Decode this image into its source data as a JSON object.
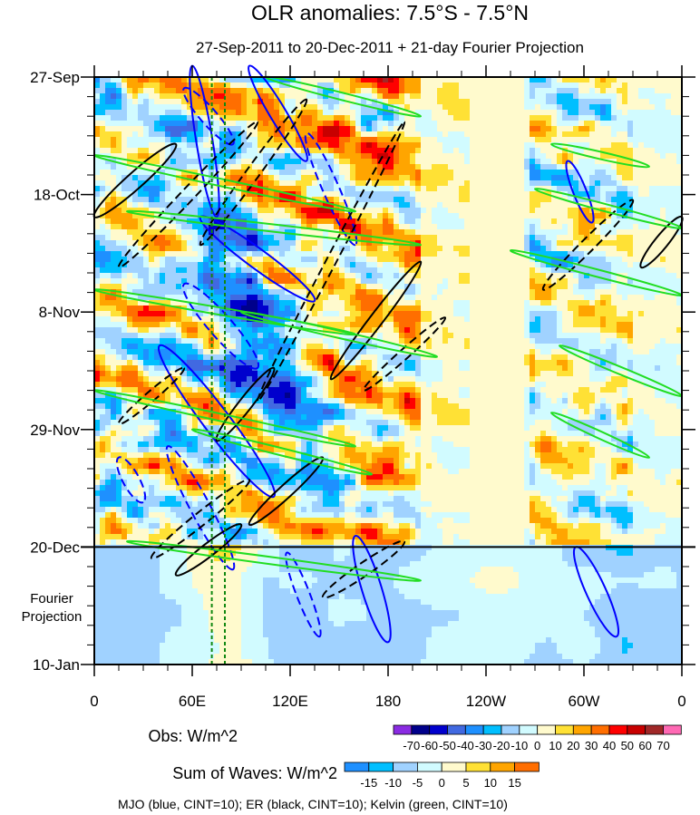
{
  "chart_data": {
    "type": "heatmap",
    "title": "OLR anomalies: 7.5°S - 7.5°N",
    "subtitle": "27-Sep-2011 to 20-Dec-2011 + 21-day Fourier Projection",
    "y_ticks": [
      {
        "label": "27-Sep",
        "day": 0
      },
      {
        "label": "18-Oct",
        "day": 21
      },
      {
        "label": "8-Nov",
        "day": 42
      },
      {
        "label": "29-Nov",
        "day": 63
      },
      {
        "label": "20-Dec",
        "day": 84
      },
      {
        "label": "10-Jan",
        "day": 105
      }
    ],
    "y_range_days": [
      0,
      105
    ],
    "projection_start_day": 84,
    "projection_label": [
      "Fourier",
      "Projection"
    ],
    "x_ticks": [
      {
        "label": "0",
        "lon": 0
      },
      {
        "label": "60E",
        "lon": 60
      },
      {
        "label": "120E",
        "lon": 120
      },
      {
        "label": "180",
        "lon": 180
      },
      {
        "label": "120W",
        "lon": 240
      },
      {
        "label": "60W",
        "lon": 300
      },
      {
        "label": "0",
        "lon": 360
      }
    ],
    "x_range_lon": [
      0,
      360
    ],
    "reference_lines_lon": [
      72,
      80
    ],
    "obs_colorbar": {
      "label": "Obs: W/m^2",
      "levels": [
        -70,
        -60,
        -50,
        -40,
        -30,
        -20,
        -10,
        0,
        10,
        20,
        30,
        40,
        50,
        60,
        70
      ],
      "colors": [
        "#8a2be2",
        "#00008b",
        "#0000cd",
        "#4169e1",
        "#1e90ff",
        "#00bfff",
        "#a0d2ff",
        "#d1fbff",
        "#fffacd",
        "#ffe135",
        "#ffa500",
        "#ff6e00",
        "#ff0000",
        "#c80000",
        "#a02828",
        "#ff69b4"
      ]
    },
    "waves_colorbar": {
      "label": "Sum of Waves: W/m^2",
      "levels": [
        -15,
        -10,
        -5,
        0,
        5,
        10,
        15
      ],
      "colors": [
        "#1e90ff",
        "#00bfff",
        "#a0d2ff",
        "#d1fbff",
        "#fffacd",
        "#ffe135",
        "#ffa500",
        "#ff6e00"
      ]
    },
    "legend_note": "MJO (blue, CINT=10); ER (black, CINT=10); Kelvin (green, CINT=10)",
    "contours": [
      {
        "wave": "MJO",
        "color": "#0000ff",
        "dashed": false,
        "p1": [
          60,
          -2
        ],
        "p2": [
          75,
          25
        ],
        "w": 10
      },
      {
        "wave": "MJO",
        "color": "#0000ff",
        "dashed": true,
        "p1": [
          55,
          2
        ],
        "p2": [
          85,
          12
        ],
        "w": 10
      },
      {
        "wave": "MJO",
        "color": "#0000ff",
        "dashed": false,
        "p1": [
          95,
          -2
        ],
        "p2": [
          130,
          15
        ],
        "w": 10
      },
      {
        "wave": "MJO",
        "color": "#0000ff",
        "dashed": true,
        "p1": [
          130,
          10
        ],
        "p2": [
          160,
          30
        ],
        "w": 10
      },
      {
        "wave": "MJO",
        "color": "#0000ff",
        "dashed": false,
        "p1": [
          65,
          25
        ],
        "p2": [
          135,
          40
        ],
        "w": 12
      },
      {
        "wave": "MJO",
        "color": "#0000ff",
        "dashed": true,
        "p1": [
          55,
          37
        ],
        "p2": [
          100,
          52
        ],
        "w": 14
      },
      {
        "wave": "MJO",
        "color": "#0000ff",
        "dashed": false,
        "p1": [
          40,
          48
        ],
        "p2": [
          110,
          75
        ],
        "w": 16
      },
      {
        "wave": "MJO",
        "color": "#0000ff",
        "dashed": true,
        "p1": [
          15,
          68
        ],
        "p2": [
          30,
          76
        ],
        "w": 10
      },
      {
        "wave": "MJO",
        "color": "#0000ff",
        "dashed": true,
        "p1": [
          45,
          66
        ],
        "p2": [
          85,
          88
        ],
        "w": 12
      },
      {
        "wave": "MJO",
        "color": "#0000ff",
        "dashed": true,
        "p1": [
          118,
          85
        ],
        "p2": [
          138,
          100
        ],
        "w": 8
      },
      {
        "wave": "MJO",
        "color": "#0000ff",
        "dashed": false,
        "p1": [
          160,
          82
        ],
        "p2": [
          180,
          101
        ],
        "w": 12
      },
      {
        "wave": "MJO",
        "color": "#0000ff",
        "dashed": false,
        "p1": [
          295,
          84
        ],
        "p2": [
          320,
          100
        ],
        "w": 12
      },
      {
        "wave": "MJO",
        "color": "#0000ff",
        "dashed": false,
        "p1": [
          290,
          15
        ],
        "p2": [
          305,
          26
        ],
        "w": 8
      },
      {
        "wave": "ER",
        "color": "#000000",
        "dashed": false,
        "p1": [
          0,
          25
        ],
        "p2": [
          50,
          12
        ],
        "w": 10
      },
      {
        "wave": "ER",
        "color": "#000000",
        "dashed": true,
        "p1": [
          15,
          34
        ],
        "p2": [
          100,
          8
        ],
        "w": 8
      },
      {
        "wave": "ER",
        "color": "#000000",
        "dashed": true,
        "p1": [
          65,
          30
        ],
        "p2": [
          130,
          4
        ],
        "w": 8
      },
      {
        "wave": "ER",
        "color": "#000000",
        "dashed": true,
        "p1": [
          100,
          58
        ],
        "p2": [
          190,
          8
        ],
        "w": 6
      },
      {
        "wave": "ER",
        "color": "#000000",
        "dashed": false,
        "p1": [
          75,
          65
        ],
        "p2": [
          110,
          52
        ],
        "w": 8
      },
      {
        "wave": "ER",
        "color": "#000000",
        "dashed": false,
        "p1": [
          145,
          54
        ],
        "p2": [
          200,
          33
        ],
        "w": 8
      },
      {
        "wave": "ER",
        "color": "#000000",
        "dashed": true,
        "p1": [
          165,
          56
        ],
        "p2": [
          215,
          43
        ],
        "w": 6
      },
      {
        "wave": "ER",
        "color": "#000000",
        "dashed": false,
        "p1": [
          95,
          80
        ],
        "p2": [
          140,
          68
        ],
        "w": 8
      },
      {
        "wave": "ER",
        "color": "#000000",
        "dashed": true,
        "p1": [
          35,
          86
        ],
        "p2": [
          95,
          72
        ],
        "w": 8
      },
      {
        "wave": "ER",
        "color": "#000000",
        "dashed": true,
        "p1": [
          140,
          93
        ],
        "p2": [
          190,
          83
        ],
        "w": 8
      },
      {
        "wave": "ER",
        "color": "#000000",
        "dashed": false,
        "p1": [
          50,
          89
        ],
        "p2": [
          90,
          80
        ],
        "w": 8
      },
      {
        "wave": "ER",
        "color": "#000000",
        "dashed": true,
        "p1": [
          275,
          38
        ],
        "p2": [
          330,
          22
        ],
        "w": 8
      },
      {
        "wave": "ER",
        "color": "#000000",
        "dashed": false,
        "p1": [
          335,
          34
        ],
        "p2": [
          360,
          25
        ],
        "w": 8
      },
      {
        "wave": "ER",
        "color": "#000000",
        "dashed": true,
        "p1": [
          15,
          62
        ],
        "p2": [
          55,
          52
        ],
        "w": 6
      }
    ],
    "kelvin": [
      {
        "lon1": 105,
        "day1": 0,
        "lon2": 200,
        "day2": 7
      },
      {
        "lon1": 0,
        "day1": 14,
        "lon2": 160,
        "day2": 24
      },
      {
        "lon1": 20,
        "day1": 24,
        "lon2": 200,
        "day2": 30
      },
      {
        "lon1": 0,
        "day1": 38,
        "lon2": 160,
        "day2": 46
      },
      {
        "lon1": 90,
        "day1": 42,
        "lon2": 210,
        "day2": 50
      },
      {
        "lon1": 0,
        "day1": 56,
        "lon2": 160,
        "day2": 66
      },
      {
        "lon1": 60,
        "day1": 63,
        "lon2": 170,
        "day2": 71
      },
      {
        "lon1": 20,
        "day1": 83,
        "lon2": 200,
        "day2": 90
      },
      {
        "lon1": 280,
        "day1": 12,
        "lon2": 340,
        "day2": 16
      },
      {
        "lon1": 270,
        "day1": 20,
        "lon2": 360,
        "day2": 27
      },
      {
        "lon1": 255,
        "day1": 31,
        "lon2": 360,
        "day2": 39
      },
      {
        "lon1": 285,
        "day1": 48,
        "lon2": 360,
        "day2": 57
      },
      {
        "lon1": 280,
        "day1": 60,
        "lon2": 340,
        "day2": 68
      }
    ]
  }
}
